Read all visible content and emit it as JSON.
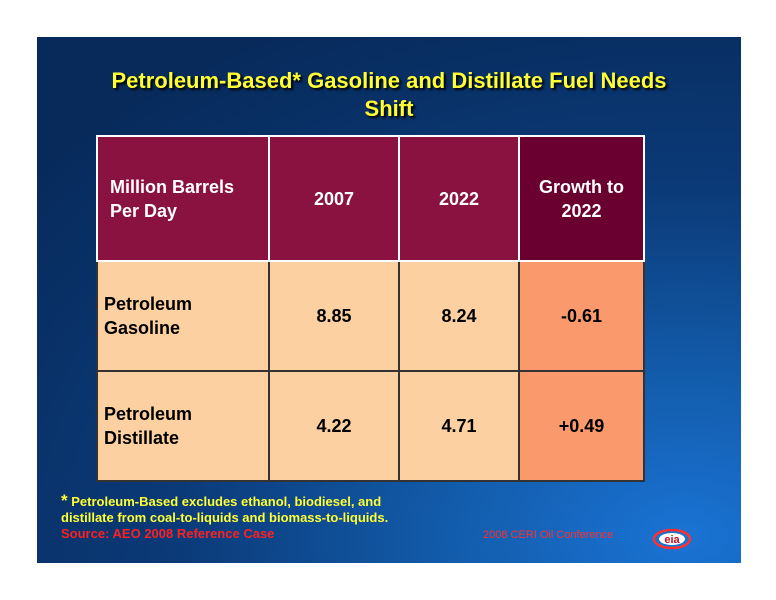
{
  "title": {
    "line1": "Petroleum-Based* Gasoline and Distillate Fuel Needs",
    "line2": "Shift"
  },
  "table": {
    "headers": {
      "col0_line1": "Million Barrels",
      "col0_line2": "Per Day",
      "col1": "2007",
      "col2": "2022",
      "col3_line1": "Growth to",
      "col3_line2": "2022"
    },
    "rows": [
      {
        "label_line1": "Petroleum",
        "label_line2": "Gasoline",
        "v2007": "8.85",
        "v2022": "8.24",
        "growth": "-0.61"
      },
      {
        "label_line1": "Petroleum",
        "label_line2": "Distillate",
        "v2007": "4.22",
        "v2022": "4.71",
        "growth": "+0.49"
      }
    ]
  },
  "footnote": {
    "star": "*",
    "line1": " Petroleum-Based excludes ethanol, biodiesel, and",
    "line2": "distillate from coal-to-liquids and biomass-to-liquids.",
    "source": "Source: AEO 2008 Reference Case"
  },
  "conference": "2008 CERI Oil Conference",
  "logo_text": "eia",
  "colors": {
    "title": "#ffff33",
    "header_bg": "#8a1240",
    "header_growth_bg": "#6a0030",
    "cell_bg": "#fcd0a0",
    "growth_bg": "#fa9a6c",
    "source_red": "#ff2020"
  }
}
